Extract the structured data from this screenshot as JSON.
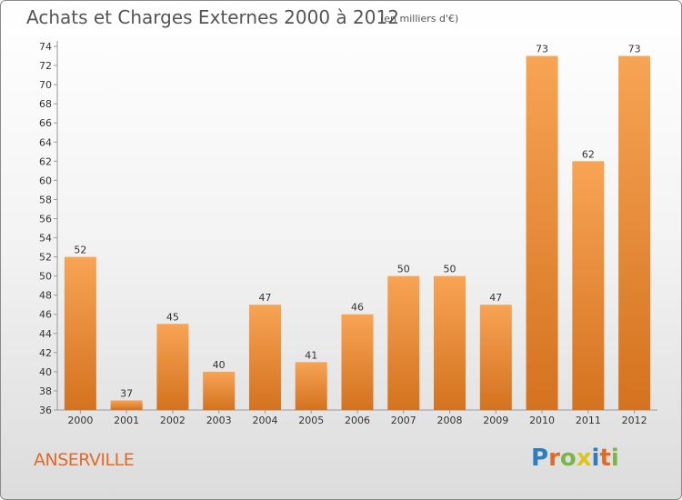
{
  "title": "Achats et Charges Externes 2000 à 2012",
  "unit": "(en milliers d'€)",
  "commune": "ANSERVILLE",
  "logo": {
    "text": "Proxiti",
    "letters": [
      {
        "char": "P",
        "color": "#2a7fc0"
      },
      {
        "char": "r",
        "color": "#e06a28"
      },
      {
        "char": "o",
        "color": "#7ab648"
      },
      {
        "char": "x",
        "color": "#e0c31c"
      },
      {
        "char": "i",
        "color": "#2a7fc0"
      },
      {
        "char": "t",
        "color": "#e06a28"
      },
      {
        "char": "i",
        "color": "#7ab648"
      }
    ]
  },
  "chart_data": {
    "type": "bar",
    "categories": [
      "2000",
      "2001",
      "2002",
      "2003",
      "2004",
      "2005",
      "2006",
      "2007",
      "2008",
      "2009",
      "2010",
      "2011",
      "2012"
    ],
    "values": [
      52,
      37,
      45,
      40,
      47,
      41,
      46,
      50,
      50,
      47,
      73,
      62,
      73
    ],
    "ylim": [
      36,
      74
    ],
    "ytick_step": 2,
    "grid": false,
    "data_labels": true,
    "bar_color_top": "#f7a454",
    "bar_color_bottom": "#d4721f",
    "axis_color": "#999999",
    "text_color": "#333333"
  }
}
